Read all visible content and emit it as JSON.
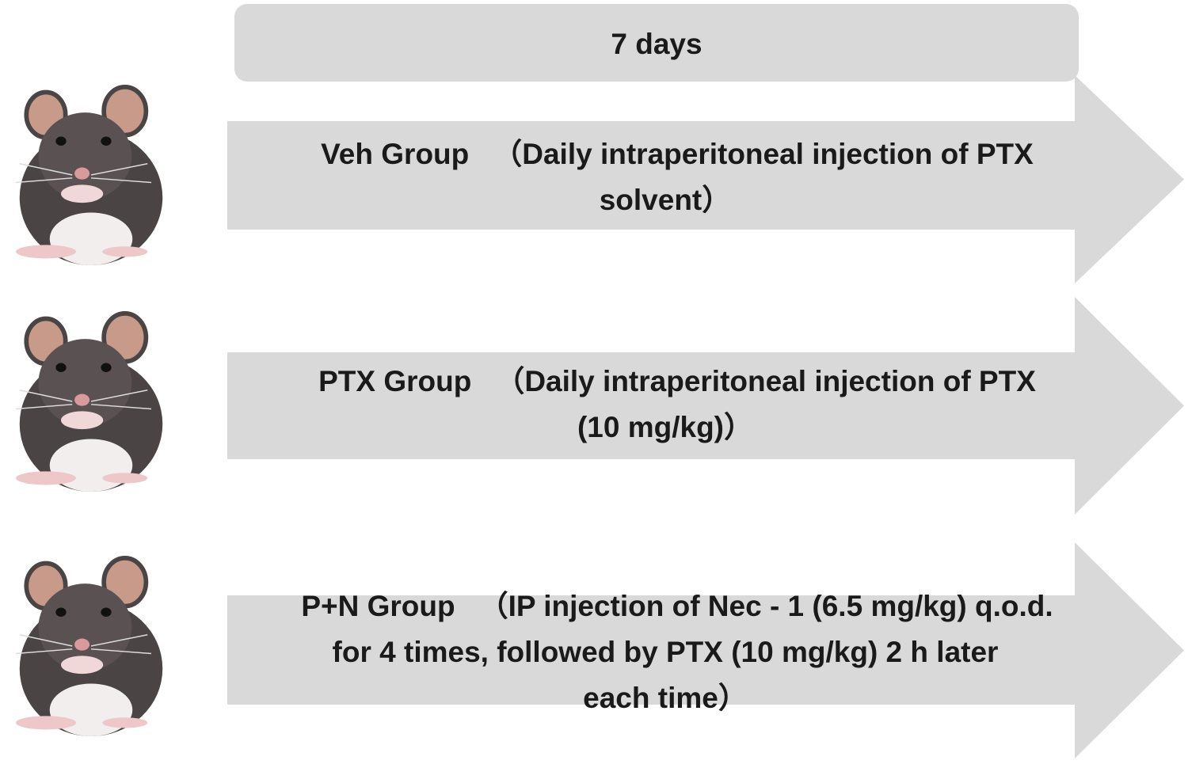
{
  "header": {
    "title": "7 days"
  },
  "groups": [
    {
      "label": "Veh Group",
      "lines": [
        "（Daily intraperitoneal injection of PTX",
        "solvent）"
      ]
    },
    {
      "label": "PTX Group",
      "lines": [
        "（Daily intraperitoneal injection of PTX",
        "(10 mg/kg)）"
      ]
    },
    {
      "label": "P+N Group",
      "lines": [
        "（IP injection of Nec - 1 (6.5 mg/kg) q.o.d.",
        "for 4 times, followed by PTX (10 mg/kg) 2 h later",
        "each time）"
      ]
    }
  ]
}
